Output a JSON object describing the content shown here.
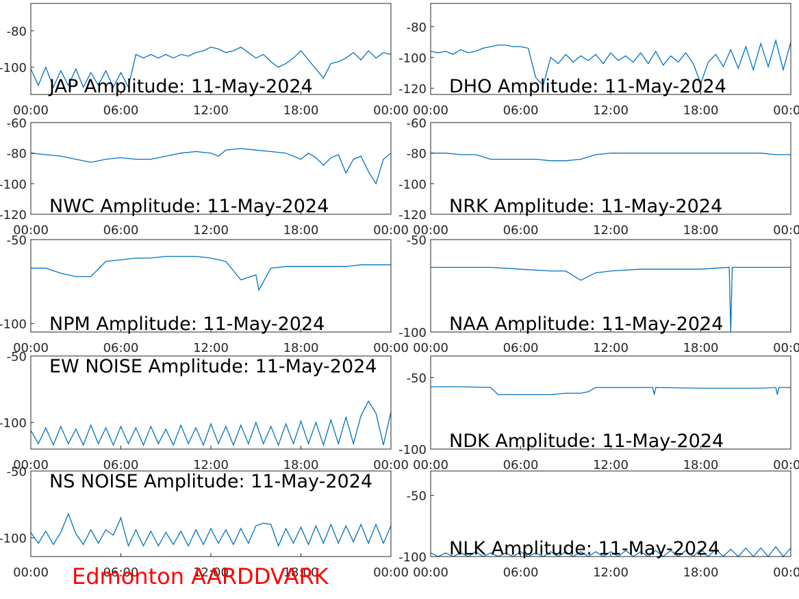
{
  "chart_data": [
    {
      "type": "line",
      "title": "JAP Amplitude: 11-May-2024",
      "color": "#0072bd",
      "x": [
        0,
        0.5,
        1,
        1.5,
        2,
        2.5,
        3,
        3.5,
        4,
        4.5,
        5,
        5.5,
        6,
        6.5,
        7,
        7.5,
        8,
        8.5,
        9,
        9.5,
        10,
        10.5,
        11,
        11.5,
        12,
        12.5,
        13,
        13.5,
        14,
        14.5,
        15,
        15.5,
        16,
        16.5,
        17,
        17.5,
        18,
        18.5,
        19,
        19.5,
        20,
        20.5,
        21,
        21.5,
        22,
        22.5,
        23,
        23.5,
        24
      ],
      "values": [
        -101,
        -110,
        -100,
        -111,
        -102,
        -110,
        -101,
        -111,
        -103,
        -110,
        -102,
        -111,
        -103,
        -111,
        -93,
        -95,
        -93,
        -95,
        -93,
        -95,
        -93,
        -94,
        -92,
        -91,
        -89,
        -90,
        -92,
        -91,
        -89,
        -92,
        -95,
        -93,
        -97,
        -100,
        -98,
        -95,
        -91,
        -96,
        -101,
        -106,
        -98,
        -97,
        -95,
        -92,
        -96,
        -91,
        -95,
        -92,
        -93
      ],
      "xlim": [
        0,
        24
      ],
      "xticks": [
        {
          "value": 0,
          "label": "00:00"
        },
        {
          "value": 6,
          "label": "06:00"
        },
        {
          "value": 12,
          "label": "12:00"
        },
        {
          "value": 18,
          "label": "18:00"
        },
        {
          "value": 24,
          "label": "00:00"
        }
      ],
      "ylim": [
        -115,
        -65
      ],
      "yticks": [
        -100,
        -80
      ]
    },
    {
      "type": "line",
      "title": "DHO Amplitude: 11-May-2024",
      "color": "#0072bd",
      "x": [
        0,
        0.5,
        1,
        1.5,
        2,
        2.5,
        3,
        3.5,
        4,
        4.5,
        5,
        5.5,
        6,
        6.5,
        7,
        7.5,
        8,
        8.5,
        9,
        9.5,
        10,
        10.5,
        11,
        11.5,
        12,
        12.5,
        13,
        13.5,
        14,
        14.5,
        15,
        15.5,
        16,
        16.5,
        17,
        17.5,
        18,
        18.5,
        19,
        19.5,
        20,
        20.5,
        21,
        21.5,
        22,
        22.5,
        23,
        23.5,
        24
      ],
      "values": [
        -96,
        -97,
        -96,
        -98,
        -95,
        -97,
        -96,
        -94,
        -93,
        -92,
        -92,
        -93,
        -93,
        -94,
        -113,
        -118,
        -100,
        -104,
        -98,
        -103,
        -99,
        -102,
        -98,
        -104,
        -97,
        -102,
        -99,
        -103,
        -97,
        -104,
        -96,
        -105,
        -99,
        -103,
        -97,
        -104,
        -117,
        -103,
        -98,
        -106,
        -95,
        -107,
        -93,
        -108,
        -91,
        -106,
        -89,
        -108,
        -90
      ],
      "xlim": [
        0,
        24
      ],
      "xticks": [
        {
          "value": 0,
          "label": "00:00"
        },
        {
          "value": 6,
          "label": "06:00"
        },
        {
          "value": 12,
          "label": "12:00"
        },
        {
          "value": 18,
          "label": "18:00"
        },
        {
          "value": 24,
          "label": "00:00"
        }
      ],
      "ylim": [
        -124,
        -65
      ],
      "yticks": [
        -120,
        -100,
        -80
      ]
    },
    {
      "type": "line",
      "title": "NWC Amplitude: 11-May-2024",
      "color": "#0072bd",
      "x": [
        0,
        1,
        2,
        3,
        4,
        5,
        6,
        7,
        8,
        9,
        10,
        11,
        12,
        12.5,
        13,
        14,
        15,
        16,
        17,
        18,
        18.5,
        19,
        19.5,
        20,
        20.5,
        21,
        21.5,
        22,
        22.5,
        23,
        23.5,
        24
      ],
      "values": [
        -80,
        -81,
        -82,
        -84,
        -86,
        -84,
        -83,
        -84,
        -84,
        -82,
        -80,
        -79,
        -80,
        -82,
        -78,
        -77,
        -78,
        -79,
        -80,
        -84,
        -80,
        -83,
        -88,
        -83,
        -81,
        -93,
        -84,
        -82,
        -92,
        -100,
        -84,
        -80
      ],
      "xlim": [
        0,
        24
      ],
      "xticks": [
        {
          "value": 0,
          "label": "00:00"
        },
        {
          "value": 6,
          "label": "06:00"
        },
        {
          "value": 12,
          "label": "12:00"
        },
        {
          "value": 18,
          "label": "18:00"
        },
        {
          "value": 24,
          "label": "00:00"
        }
      ],
      "ylim": [
        -120,
        -60
      ],
      "yticks": [
        -120,
        -100,
        -80,
        -60
      ]
    },
    {
      "type": "line",
      "title": "NRK Amplitude: 11-May-2024",
      "color": "#0072bd",
      "x": [
        0,
        1,
        2,
        3,
        4,
        5,
        6,
        7,
        8,
        9,
        10,
        11,
        12,
        13,
        14,
        15,
        16,
        17,
        18,
        19,
        20,
        21,
        22,
        23,
        24
      ],
      "values": [
        -80,
        -80,
        -81,
        -81,
        -84,
        -84,
        -84,
        -84,
        -85,
        -85,
        -84,
        -81,
        -80,
        -80,
        -80,
        -80,
        -80,
        -80,
        -80,
        -80,
        -80,
        -80,
        -80,
        -81,
        -81
      ],
      "xlim": [
        0,
        24
      ],
      "xticks": [
        {
          "value": 0,
          "label": "00:00"
        },
        {
          "value": 6,
          "label": "06:00"
        },
        {
          "value": 12,
          "label": "12:00"
        },
        {
          "value": 18,
          "label": "18:00"
        },
        {
          "value": 24,
          "label": "00:00"
        }
      ],
      "ylim": [
        -120,
        -60
      ],
      "yticks": [
        -120,
        -100,
        -80,
        -60
      ]
    },
    {
      "type": "line",
      "title": "NPM Amplitude: 11-May-2024",
      "color": "#0072bd",
      "x": [
        0,
        1,
        2,
        3,
        4,
        5,
        6,
        7,
        8,
        9,
        10,
        11,
        12,
        13,
        14,
        15,
        15.2,
        16,
        17,
        18,
        19,
        20,
        21,
        22,
        23,
        24
      ],
      "values": [
        -67,
        -67,
        -70,
        -72,
        -72,
        -63,
        -62,
        -61,
        -61,
        -60,
        -60,
        -60,
        -61,
        -63,
        -74,
        -71,
        -80,
        -67,
        -66,
        -66,
        -66,
        -66,
        -66,
        -65,
        -65,
        -65
      ],
      "xlim": [
        0,
        24
      ],
      "xticks": [
        {
          "value": 0,
          "label": "00:00"
        },
        {
          "value": 6,
          "label": "06:00"
        },
        {
          "value": 12,
          "label": "12:00"
        },
        {
          "value": 18,
          "label": "18:00"
        },
        {
          "value": 24,
          "label": "00:00"
        }
      ],
      "ylim": [
        -105,
        -50
      ],
      "yticks": [
        -100,
        -50
      ]
    },
    {
      "type": "line",
      "title": "NAA Amplitude: 11-May-2024",
      "color": "#0072bd",
      "x": [
        0,
        2,
        4,
        6,
        8,
        9,
        10,
        11,
        12,
        14,
        16,
        18,
        19.9,
        20,
        20.1,
        22,
        24
      ],
      "values": [
        -65,
        -65,
        -65,
        -66,
        -67,
        -67,
        -72,
        -68,
        -67,
        -66,
        -66,
        -66,
        -65,
        -100,
        -65,
        -65,
        -65
      ],
      "xlim": [
        0,
        24
      ],
      "xticks": [
        {
          "value": 0,
          "label": "00:00"
        },
        {
          "value": 6,
          "label": "06:00"
        },
        {
          "value": 12,
          "label": "12:00"
        },
        {
          "value": 18,
          "label": "18:00"
        },
        {
          "value": 24,
          "label": "00:00"
        }
      ],
      "ylim": [
        -100,
        -50
      ],
      "yticks": [
        -100,
        -50
      ]
    },
    {
      "type": "line",
      "title": "EW NOISE Amplitude: 11-May-2024",
      "color": "#0072bd",
      "x": [
        0,
        0.5,
        1,
        1.5,
        2,
        2.5,
        3,
        3.5,
        4,
        4.5,
        5,
        5.5,
        6,
        6.5,
        7,
        7.5,
        8,
        8.5,
        9,
        9.5,
        10,
        10.5,
        11,
        11.5,
        12,
        12.5,
        13,
        13.5,
        14,
        14.5,
        15,
        15.5,
        16,
        16.5,
        17,
        17.5,
        18,
        18.5,
        19,
        19.5,
        20,
        20.5,
        21,
        21.5,
        22,
        22.5,
        23,
        23.5,
        24
      ],
      "values": [
        -106,
        -116,
        -104,
        -117,
        -103,
        -116,
        -105,
        -117,
        -102,
        -116,
        -104,
        -117,
        -103,
        -116,
        -104,
        -117,
        -103,
        -116,
        -105,
        -117,
        -102,
        -116,
        -104,
        -117,
        -101,
        -116,
        -103,
        -117,
        -102,
        -116,
        -100,
        -116,
        -103,
        -117,
        -101,
        -116,
        -99,
        -116,
        -100,
        -117,
        -98,
        -116,
        -96,
        -116,
        -95,
        -84,
        -93,
        -117,
        -92
      ],
      "xlim": [
        0,
        24
      ],
      "xticks": [
        {
          "value": 0,
          "label": "00:00"
        },
        {
          "value": 6,
          "label": "06:00"
        },
        {
          "value": 12,
          "label": "12:00"
        },
        {
          "value": 18,
          "label": "18:00"
        },
        {
          "value": 24,
          "label": "00:00"
        }
      ],
      "ylim": [
        -120,
        -50
      ],
      "yticks": [
        -100,
        -50
      ]
    },
    {
      "type": "line",
      "title": "NDK Amplitude: 11-May-2024",
      "color": "#0072bd",
      "x": [
        0,
        2,
        4,
        4.5,
        5,
        6,
        7,
        8,
        9,
        10,
        10.5,
        11,
        12,
        14,
        14.8,
        14.9,
        15,
        18,
        20,
        22,
        23,
        23.1,
        23.2,
        24
      ],
      "values": [
        -56.5,
        -56.5,
        -57,
        -62,
        -62,
        -62,
        -62,
        -62,
        -61,
        -61,
        -60,
        -57,
        -57,
        -57,
        -57,
        -62,
        -57,
        -57.5,
        -57.5,
        -57.5,
        -57,
        -62,
        -57,
        -57
      ],
      "xlim": [
        0,
        24
      ],
      "xticks": [
        {
          "value": 0,
          "label": "00:00"
        },
        {
          "value": 6,
          "label": "06:00"
        },
        {
          "value": 12,
          "label": "12:00"
        },
        {
          "value": 18,
          "label": "18:00"
        },
        {
          "value": 24,
          "label": "00:00"
        }
      ],
      "ylim": [
        -100,
        -35
      ],
      "yticks": [
        -100,
        -50
      ]
    },
    {
      "type": "line",
      "title": "NS NOISE Amplitude: 11-May-2024",
      "color": "#0072bd",
      "x": [
        0,
        0.5,
        1,
        1.5,
        2,
        2.5,
        3,
        3.5,
        4,
        4.5,
        5,
        5.5,
        6,
        6.5,
        7,
        7.5,
        8,
        8.5,
        9,
        9.5,
        10,
        10.5,
        11,
        11.5,
        12,
        12.5,
        13,
        13.5,
        14,
        14.5,
        15,
        15.5,
        16,
        16.5,
        17,
        17.5,
        18,
        18.5,
        19,
        19.5,
        20,
        20.5,
        21,
        21.5,
        22,
        22.5,
        23,
        23.5,
        24
      ],
      "values": [
        -96,
        -104,
        -95,
        -105,
        -96,
        -82,
        -97,
        -105,
        -94,
        -104,
        -94,
        -98,
        -85,
        -106,
        -94,
        -106,
        -95,
        -106,
        -96,
        -105,
        -95,
        -106,
        -94,
        -105,
        -93,
        -104,
        -94,
        -105,
        -93,
        -104,
        -91,
        -89,
        -90,
        -106,
        -93,
        -104,
        -92,
        -105,
        -91,
        -104,
        -90,
        -104,
        -91,
        -103,
        -90,
        -104,
        -90,
        -104,
        -91
      ],
      "xlim": [
        0,
        24
      ],
      "xticks": [
        {
          "value": 0,
          "label": "00:00"
        },
        {
          "value": 6,
          "label": "06:00"
        },
        {
          "value": 12,
          "label": "12:00"
        },
        {
          "value": 18,
          "label": "18:00"
        },
        {
          "value": 24,
          "label": "00:00"
        }
      ],
      "ylim": [
        -114,
        -50
      ],
      "yticks": [
        -100,
        -50
      ]
    },
    {
      "type": "line",
      "title": "NLK Amplitude: 11-May-2024",
      "color": "#0072bd",
      "x": [
        0,
        0.5,
        1,
        1.5,
        2,
        2.5,
        3,
        3.5,
        4,
        4.5,
        5,
        5.5,
        6,
        6.5,
        7,
        7.5,
        8,
        8.5,
        9,
        9.5,
        10,
        10.5,
        11,
        11.5,
        12,
        12.5,
        13,
        13.5,
        14,
        14.5,
        15,
        15.5,
        16,
        16.5,
        17,
        17.5,
        18,
        18.5,
        19,
        19.5,
        20,
        20.5,
        21,
        21.5,
        22,
        22.5,
        23,
        23.5,
        24
      ],
      "values": [
        -97,
        -100,
        -97,
        -100,
        -97,
        -100,
        -96,
        -100,
        -97,
        -100,
        -97,
        -100,
        -96,
        -100,
        -97,
        -100,
        -96,
        -100,
        -96,
        -100,
        -96,
        -100,
        -96,
        -100,
        -96,
        -100,
        -95,
        -100,
        -96,
        -100,
        -95,
        -100,
        -95,
        -100,
        -95,
        -100,
        -94,
        -100,
        -94,
        -100,
        -94,
        -100,
        -93,
        -100,
        -93,
        -100,
        -92,
        -100,
        -93
      ],
      "xlim": [
        0,
        24
      ],
      "xticks": [
        {
          "value": 0,
          "label": "00:00"
        },
        {
          "value": 6,
          "label": "06:00"
        },
        {
          "value": 12,
          "label": "12:00"
        },
        {
          "value": 18,
          "label": "18:00"
        },
        {
          "value": 24,
          "label": "00:00"
        }
      ],
      "ylim": [
        -100,
        -30
      ],
      "yticks": [
        -100,
        -50
      ]
    }
  ],
  "footer": "Edmonton AARDDVARK"
}
